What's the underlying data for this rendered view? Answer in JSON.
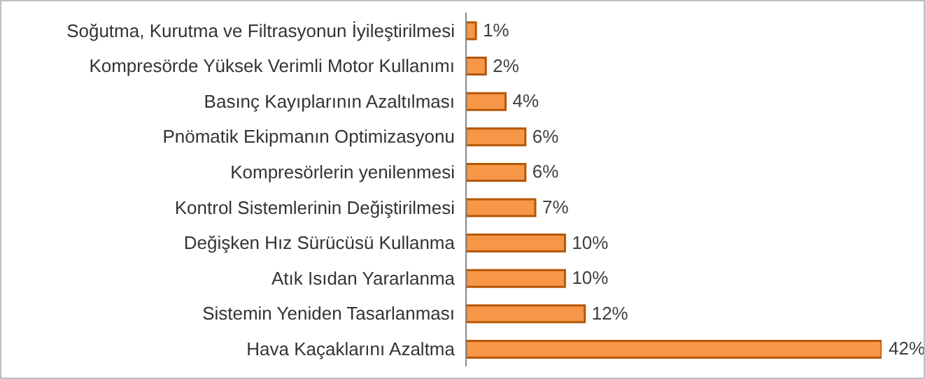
{
  "chart_data": {
    "type": "bar",
    "orientation": "horizontal",
    "categories": [
      "Soğutma, Kurutma ve Filtrasyonun İyileştirilmesi",
      "Kompresörde Yüksek Verimli Motor Kullanımı",
      "Basınç Kayıplarının Azaltılması",
      "Pnömatik Ekipmanın Optimizasyonu",
      "Kompresörlerin yenilenmesi",
      "Kontrol Sistemlerinin Değiştirilmesi",
      "Değişken Hız Sürücüsü Kullanma",
      "Atık Isıdan Yararlanma",
      "Sistemin Yeniden Tasarlanması",
      "Hava Kaçaklarını Azaltma"
    ],
    "values": [
      1,
      2,
      4,
      6,
      6,
      7,
      10,
      10,
      12,
      42
    ],
    "value_labels": [
      "1%",
      "2%",
      "4%",
      "6%",
      "6%",
      "7%",
      "10%",
      "10%",
      "12%",
      "42%"
    ],
    "color": "#f79646"
  }
}
